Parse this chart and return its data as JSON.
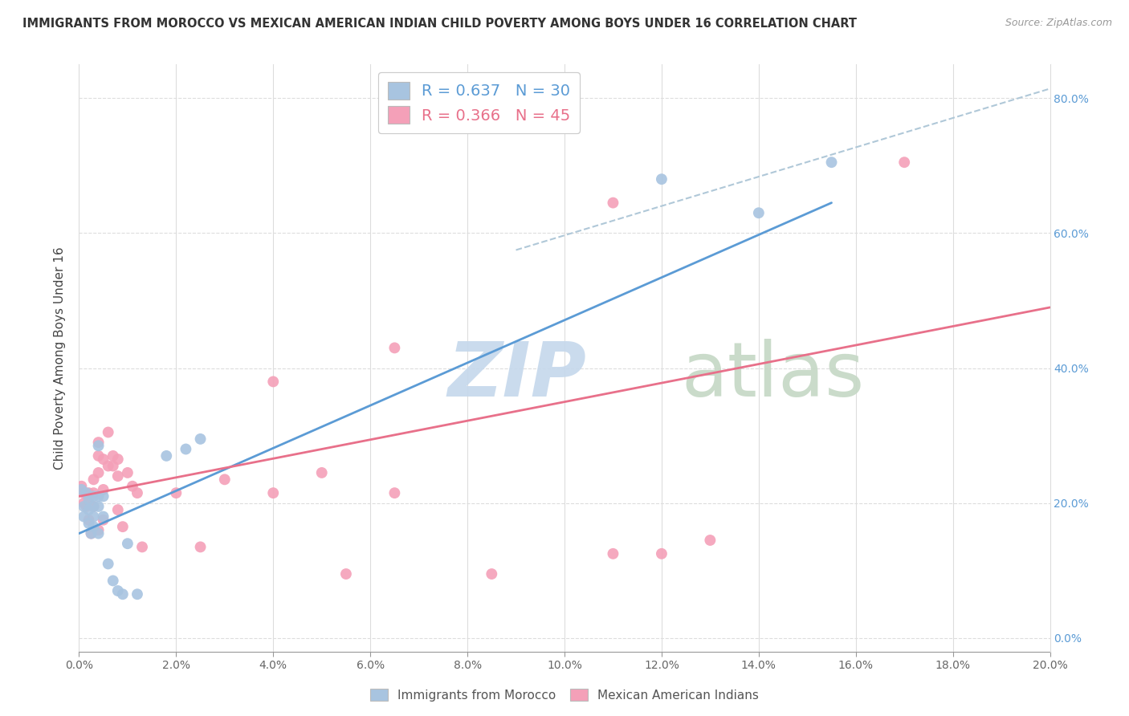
{
  "title": "IMMIGRANTS FROM MOROCCO VS MEXICAN AMERICAN INDIAN CHILD POVERTY AMONG BOYS UNDER 16 CORRELATION CHART",
  "source": "Source: ZipAtlas.com",
  "ylabel": "Child Poverty Among Boys Under 16",
  "xlim": [
    0.0,
    0.2
  ],
  "ylim": [
    -0.02,
    0.85
  ],
  "xticks": [
    0.0,
    0.02,
    0.04,
    0.06,
    0.08,
    0.1,
    0.12,
    0.14,
    0.16,
    0.18,
    0.2
  ],
  "yticks": [
    0.0,
    0.2,
    0.4,
    0.6,
    0.8
  ],
  "blue_color": "#a8c4e0",
  "pink_color": "#f4a0b8",
  "blue_line_color": "#5b9bd5",
  "pink_line_color": "#e8708a",
  "dashed_line_color": "#b0c8d8",
  "legend_blue_R": "0.637",
  "legend_blue_N": "30",
  "legend_pink_R": "0.366",
  "legend_pink_N": "45",
  "blue_scatter_x": [
    0.0005,
    0.001,
    0.001,
    0.0015,
    0.002,
    0.002,
    0.002,
    0.0025,
    0.003,
    0.003,
    0.003,
    0.003,
    0.004,
    0.004,
    0.004,
    0.004,
    0.005,
    0.005,
    0.006,
    0.007,
    0.008,
    0.009,
    0.01,
    0.012,
    0.018,
    0.022,
    0.025,
    0.12,
    0.14,
    0.155
  ],
  "blue_scatter_y": [
    0.22,
    0.195,
    0.18,
    0.215,
    0.205,
    0.19,
    0.17,
    0.155,
    0.21,
    0.195,
    0.18,
    0.165,
    0.285,
    0.155,
    0.21,
    0.195,
    0.21,
    0.18,
    0.11,
    0.085,
    0.07,
    0.065,
    0.14,
    0.065,
    0.27,
    0.28,
    0.295,
    0.68,
    0.63,
    0.705
  ],
  "pink_scatter_x": [
    0.0005,
    0.001,
    0.001,
    0.0015,
    0.002,
    0.002,
    0.002,
    0.0025,
    0.003,
    0.003,
    0.003,
    0.004,
    0.004,
    0.004,
    0.004,
    0.005,
    0.005,
    0.005,
    0.006,
    0.006,
    0.007,
    0.007,
    0.008,
    0.008,
    0.008,
    0.009,
    0.01,
    0.011,
    0.012,
    0.013,
    0.02,
    0.025,
    0.03,
    0.04,
    0.04,
    0.05,
    0.055,
    0.065,
    0.065,
    0.085,
    0.11,
    0.11,
    0.12,
    0.13,
    0.17
  ],
  "pink_scatter_y": [
    0.225,
    0.215,
    0.2,
    0.195,
    0.215,
    0.2,
    0.175,
    0.155,
    0.235,
    0.215,
    0.195,
    0.29,
    0.27,
    0.245,
    0.16,
    0.265,
    0.22,
    0.175,
    0.305,
    0.255,
    0.27,
    0.255,
    0.265,
    0.24,
    0.19,
    0.165,
    0.245,
    0.225,
    0.215,
    0.135,
    0.215,
    0.135,
    0.235,
    0.38,
    0.215,
    0.245,
    0.095,
    0.43,
    0.215,
    0.095,
    0.645,
    0.125,
    0.125,
    0.145,
    0.705
  ],
  "blue_line_x": [
    0.0,
    0.155
  ],
  "blue_line_y": [
    0.155,
    0.645
  ],
  "pink_line_x": [
    0.0,
    0.2
  ],
  "pink_line_y": [
    0.21,
    0.49
  ],
  "dashed_line_x": [
    0.09,
    0.205
  ],
  "dashed_line_y": [
    0.575,
    0.825
  ]
}
